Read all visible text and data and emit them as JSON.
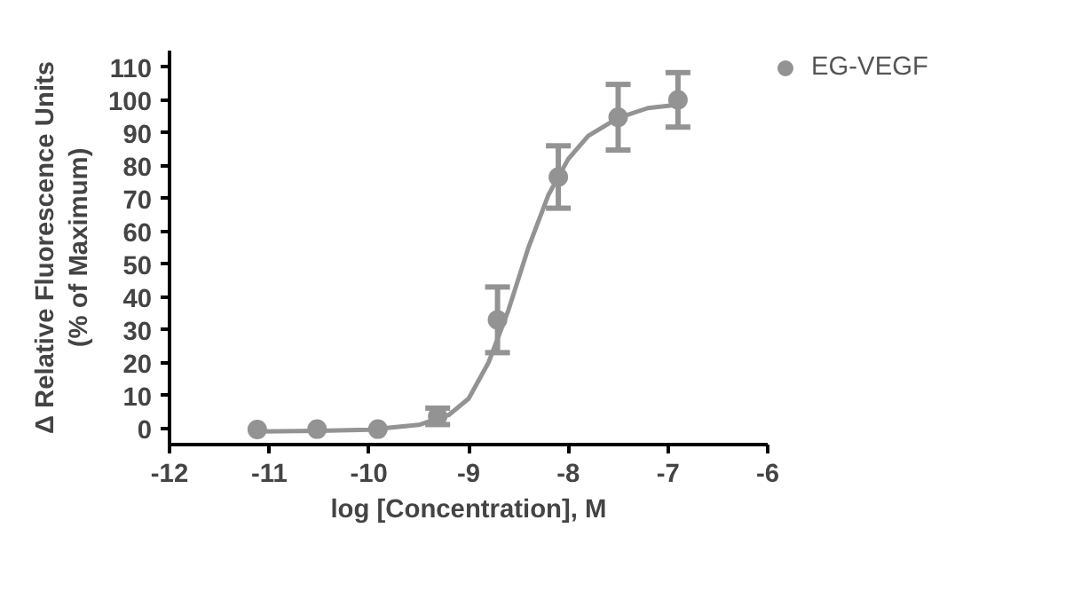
{
  "chart_data": {
    "type": "scatter",
    "xlabel": "log [Concentration], M",
    "ylabel": "Δ Relative Fluorescence Units\n(% of Maximum)",
    "xlim": [
      -12,
      -6
    ],
    "ylim": [
      -5,
      115
    ],
    "xticks": [
      -12,
      -11,
      -10,
      -9,
      -8,
      -7,
      -6
    ],
    "yticks": [
      0,
      10,
      20,
      30,
      40,
      50,
      60,
      70,
      80,
      90,
      100,
      110
    ],
    "grid": false,
    "legend": "top right",
    "series": [
      {
        "name": "EG-VEGF",
        "color": "#939393",
        "marker": "circle",
        "x": [
          -11.12,
          -10.52,
          -9.91,
          -9.31,
          -8.71,
          -8.1,
          -7.5,
          -6.9
        ],
        "values": [
          -0.4,
          -0.3,
          -0.3,
          3.6,
          33,
          76.5,
          94.7,
          100
        ],
        "errors": [
          null,
          null,
          null,
          2.5,
          10,
          9.5,
          10,
          8.3
        ]
      },
      {
        "color": "#939393",
        "type": "line",
        "line_style": "solid",
        "x": [
          -11.12,
          -10.5,
          -10,
          -9.5,
          -9.2,
          -9.0,
          -8.8,
          -8.6,
          -8.4,
          -8.2,
          -8.0,
          -7.8,
          -7.5,
          -7.2,
          -6.9
        ],
        "values": [
          -1,
          -0.8,
          -0.5,
          1,
          4,
          9,
          20,
          36,
          55,
          71,
          82,
          89,
          94.5,
          97.5,
          98.5
        ]
      }
    ]
  }
}
